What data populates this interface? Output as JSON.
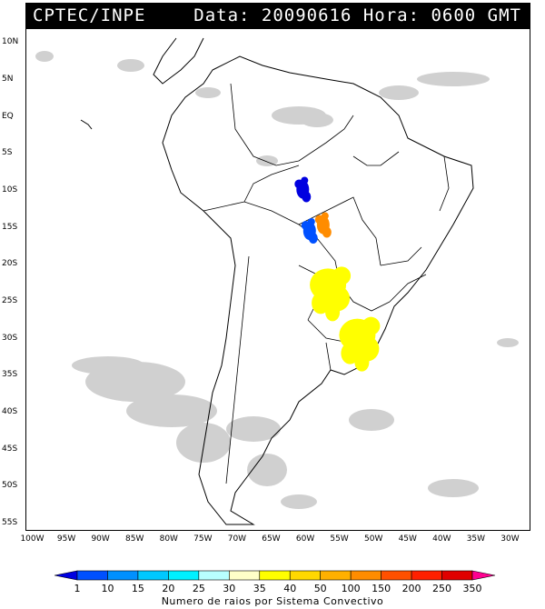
{
  "header": {
    "source": "CPTEC/INPE",
    "datetime": "Data: 20090616 Hora: 0600 GMT"
  },
  "map": {
    "lat_labels": [
      "10N",
      "5N",
      "EQ",
      "5S",
      "10S",
      "15S",
      "20S",
      "25S",
      "30S",
      "35S",
      "40S",
      "45S",
      "50S",
      "55S"
    ],
    "lon_labels": [
      "100W",
      "95W",
      "90W",
      "85W",
      "80W",
      "75W",
      "70W",
      "65W",
      "60W",
      "55W",
      "50W",
      "45W",
      "40W",
      "35W",
      "30W"
    ],
    "extent": {
      "lon_min": -101,
      "lon_max": -27,
      "lat_min": -56,
      "lat_max": 12
    }
  },
  "legend": {
    "caption": "Numero de raios por Sistema Convectivo",
    "labels": [
      "1",
      "10",
      "15",
      "20",
      "25",
      "30",
      "35",
      "40",
      "50",
      "100",
      "150",
      "200",
      "250",
      "350"
    ],
    "colors": [
      "#0000e0",
      "#0050ff",
      "#0090ff",
      "#00c8ff",
      "#00f0ff",
      "#b8ffff",
      "#ffffc8",
      "#ffff00",
      "#ffd800",
      "#ffb000",
      "#ff8c00",
      "#ff5000",
      "#ff2000",
      "#e00000",
      "#ff0090"
    ]
  },
  "systems": [
    {
      "lon": -60.5,
      "lat": -9.7,
      "level": "1"
    },
    {
      "lon": -57.5,
      "lat": -14.5,
      "level": "150"
    },
    {
      "lon": -59.5,
      "lat": -15.3,
      "level": "10"
    },
    {
      "lon": -56.8,
      "lat": -22.6,
      "level": "40"
    },
    {
      "lon": -52.5,
      "lat": -29.4,
      "level": "40"
    }
  ]
}
